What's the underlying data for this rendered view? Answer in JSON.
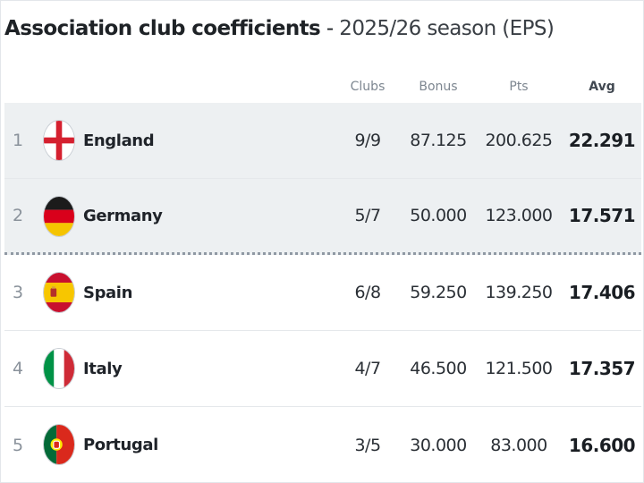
{
  "title": {
    "main": "Association club coefficients",
    "separator": " - ",
    "season": "2025/26 season (EPS)"
  },
  "columns": {
    "clubs": "Clubs",
    "bonus": "Bonus",
    "pts": "Pts",
    "avg": "Avg"
  },
  "rows": [
    {
      "rank": "1",
      "country": "England",
      "flag_icon": "england-flag-icon",
      "clubs": "9/9",
      "bonus": "87.125",
      "pts": "200.625",
      "avg": "22.291"
    },
    {
      "rank": "2",
      "country": "Germany",
      "flag_icon": "germany-flag-icon",
      "clubs": "5/7",
      "bonus": "50.000",
      "pts": "123.000",
      "avg": "17.571"
    },
    {
      "rank": "3",
      "country": "Spain",
      "flag_icon": "spain-flag-icon",
      "clubs": "6/8",
      "bonus": "59.250",
      "pts": "139.250",
      "avg": "17.406"
    },
    {
      "rank": "4",
      "country": "Italy",
      "flag_icon": "italy-flag-icon",
      "clubs": "4/7",
      "bonus": "46.500",
      "pts": "121.500",
      "avg": "17.357"
    },
    {
      "rank": "5",
      "country": "Portugal",
      "flag_icon": "portugal-flag-icon",
      "clubs": "3/5",
      "bonus": "30.000",
      "pts": "83.000",
      "avg": "16.600"
    }
  ],
  "colors": {
    "highlight_row": "#edf0f2",
    "cutoff_line": "#8f98a3",
    "header_text": "#7d8690"
  }
}
